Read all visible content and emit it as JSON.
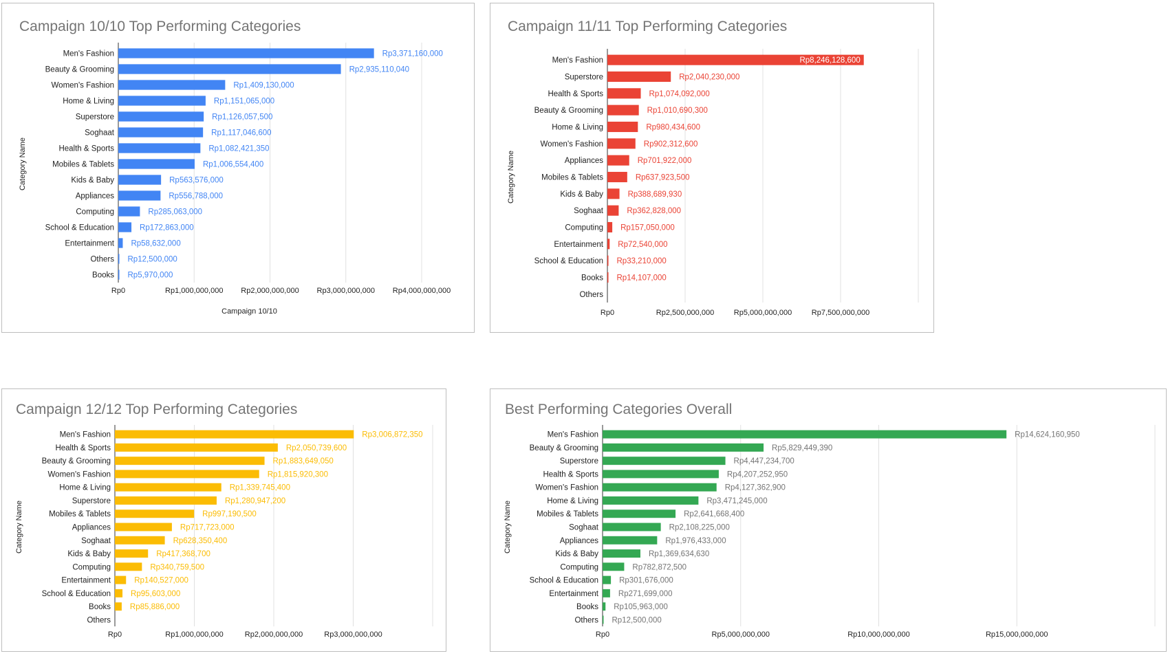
{
  "chart_data": [
    {
      "type": "bar",
      "orientation": "horizontal",
      "title": "Campaign 10/10 Top Performing Categories",
      "xlabel": "Campaign 10/10",
      "ylabel": "Category Name",
      "color": "#4285f4",
      "xlim": [
        0,
        4000000000
      ],
      "xticks": [
        0,
        1000000000,
        2000000000,
        3000000000,
        4000000000
      ],
      "xtick_labels": [
        "Rp0",
        "Rp1,000,000,000",
        "Rp2,000,000,000",
        "Rp3,000,000,000",
        "Rp4,000,000,000"
      ],
      "grid": true,
      "categories": [
        "Men's Fashion",
        "Beauty & Grooming",
        "Women's Fashion",
        "Home & Living",
        "Superstore",
        "Soghaat",
        "Health & Sports",
        "Mobiles & Tablets",
        "Kids & Baby",
        "Appliances",
        "Computing",
        "School & Education",
        "Entertainment",
        "Others",
        "Books"
      ],
      "values": [
        3371160000,
        2935110040,
        1409130000,
        1151065000,
        1126057500,
        1117046600,
        1082421350,
        1006554400,
        563576000,
        556788000,
        285063000,
        172863000,
        58632000,
        12500000,
        5970000
      ],
      "data_labels": [
        "Rp3,371,160,000",
        "Rp2,935,110,040",
        "Rp1,409,130,000",
        "Rp1,151,065,000",
        "Rp1,126,057,500",
        "Rp1,117,046,600",
        "Rp1,082,421,350",
        "Rp1,006,554,400",
        "Rp563,576,000",
        "Rp556,788,000",
        "Rp285,063,000",
        "Rp172,863,000",
        "Rp58,632,000",
        "Rp12,500,000",
        "Rp5,970,000"
      ]
    },
    {
      "type": "bar",
      "orientation": "horizontal",
      "title": "Campaign 11/11 Top Performing Categories",
      "xlabel": "",
      "ylabel": "Category Name",
      "color": "#ea4335",
      "xlim": [
        0,
        10000000000
      ],
      "xticks": [
        0,
        2500000000,
        5000000000,
        7500000000
      ],
      "xtick_labels": [
        "Rp0",
        "Rp2,500,000,000",
        "Rp5,000,000,000",
        "Rp7,500,000,000"
      ],
      "grid": true,
      "categories": [
        "Men's Fashion",
        "Superstore",
        "Health & Sports",
        "Beauty & Grooming",
        "Home & Living",
        "Women's Fashion",
        "Appliances",
        "Mobiles & Tablets",
        "Kids & Baby",
        "Soghaat",
        "Computing",
        "Entertainment",
        "School & Education",
        "Books",
        "Others"
      ],
      "values": [
        8246128600,
        2040230000,
        1074092000,
        1010690300,
        980434600,
        902312600,
        701922000,
        637923500,
        388689930,
        362828000,
        157050000,
        72540000,
        33210000,
        14107000,
        0
      ],
      "data_labels": [
        "Rp8,246,128,600",
        "Rp2,040,230,000",
        "Rp1,074,092,000",
        "Rp1,010,690,300",
        "Rp980,434,600",
        "Rp902,312,600",
        "Rp701,922,000",
        "Rp637,923,500",
        "Rp388,689,930",
        "Rp362,828,000",
        "Rp157,050,000",
        "Rp72,540,000",
        "Rp33,210,000",
        "Rp14,107,000",
        ""
      ]
    },
    {
      "type": "bar",
      "orientation": "horizontal",
      "title": "Campaign 12/12 Top Performing Categories",
      "xlabel": "",
      "ylabel": "Category Name",
      "color": "#fbbc04",
      "xlim": [
        0,
        4000000000
      ],
      "xticks": [
        0,
        1000000000,
        2000000000,
        3000000000
      ],
      "xtick_labels": [
        "Rp0",
        "Rp1,000,000,000",
        "Rp2,000,000,000",
        "Rp3,000,000,000"
      ],
      "grid": true,
      "categories": [
        "Men's Fashion",
        "Health & Sports",
        "Beauty & Grooming",
        "Women's Fashion",
        "Home & Living",
        "Superstore",
        "Mobiles & Tablets",
        "Appliances",
        "Soghaat",
        "Kids & Baby",
        "Computing",
        "Entertainment",
        "School & Education",
        "Books",
        "Others"
      ],
      "values": [
        3006872350,
        2050739600,
        1883649050,
        1815920300,
        1339745400,
        1280947200,
        997190500,
        717723000,
        628350400,
        417368700,
        340759500,
        140527000,
        95603000,
        85886000,
        0
      ],
      "data_labels": [
        "Rp3,006,872,350",
        "Rp2,050,739,600",
        "Rp1,883,649,050",
        "Rp1,815,920,300",
        "Rp1,339,745,400",
        "Rp1,280,947,200",
        "Rp997,190,500",
        "Rp717,723,000",
        "Rp628,350,400",
        "Rp417,368,700",
        "Rp340,759,500",
        "Rp140,527,000",
        "Rp95,603,000",
        "Rp85,886,000",
        ""
      ]
    },
    {
      "type": "bar",
      "orientation": "horizontal",
      "title": "Best Performing Categories Overall",
      "xlabel": "",
      "ylabel": "Category Name",
      "color": "#34a853",
      "label_color": "#757575",
      "xlim": [
        0,
        20000000000
      ],
      "xticks": [
        0,
        5000000000,
        10000000000,
        15000000000
      ],
      "xtick_labels": [
        "Rp0",
        "Rp5,000,000,000",
        "Rp10,000,000,000",
        "Rp15,000,000,000"
      ],
      "grid": true,
      "categories": [
        "Men's Fashion",
        "Beauty & Grooming",
        "Superstore",
        "Health & Sports",
        "Women's Fashion",
        "Home & Living",
        "Mobiles & Tablets",
        "Soghaat",
        "Appliances",
        "Kids & Baby",
        "Computing",
        "School & Education",
        "Entertainment",
        "Books",
        "Others"
      ],
      "values": [
        14624160950,
        5829449390,
        4447234700,
        4207252950,
        4127362900,
        3471245000,
        2641668400,
        2108225000,
        1976433000,
        1369634630,
        782872500,
        301676000,
        271699000,
        105963000,
        12500000
      ],
      "data_labels": [
        "Rp14,624,160,950",
        "Rp5,829,449,390",
        "Rp4,447,234,700",
        "Rp4,207,252,950",
        "Rp4,127,362,900",
        "Rp3,471,245,000",
        "Rp2,641,668,400",
        "Rp2,108,225,000",
        "Rp1,976,433,000",
        "Rp1,369,634,630",
        "Rp782,872,500",
        "Rp301,676,000",
        "Rp271,699,000",
        "Rp105,963,000",
        "Rp12,500,000"
      ]
    }
  ]
}
